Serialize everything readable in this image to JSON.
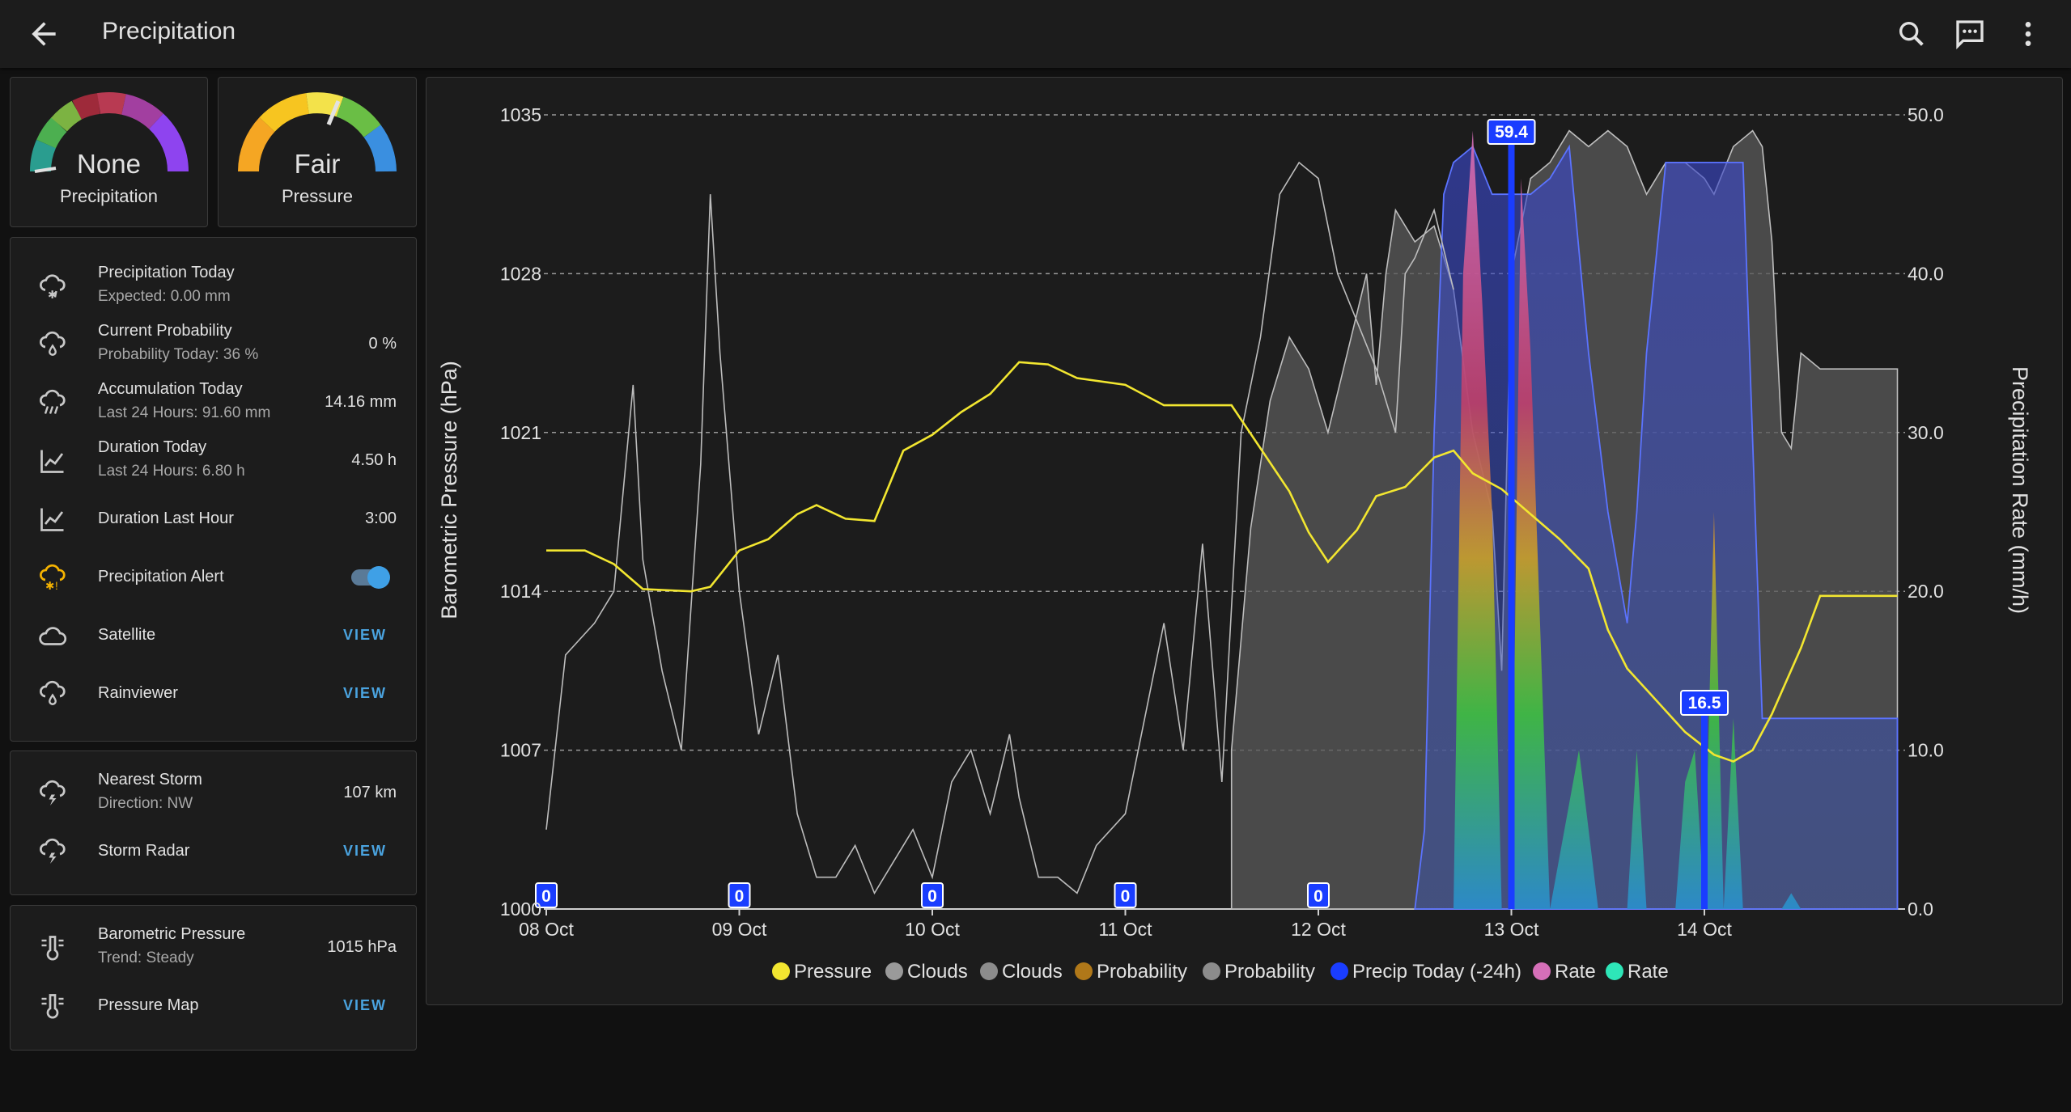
{
  "header": {
    "title": "Precipitation"
  },
  "gauges": [
    {
      "value": "None",
      "label": "Precipitation"
    },
    {
      "value": "Fair",
      "label": "Pressure"
    }
  ],
  "entities": {
    "precip_today": {
      "name": "Precipitation Today",
      "secondary": "Expected: 0.00 mm"
    },
    "current_probability": {
      "name": "Current Probability",
      "secondary": "Probability Today: 36 %",
      "value": "0 %"
    },
    "accumulation_today": {
      "name": "Accumulation Today",
      "secondary": "Last 24 Hours: 91.60 mm",
      "value": "14.16 mm"
    },
    "duration_today": {
      "name": "Duration Today",
      "secondary": "Last 24 Hours: 6.80 h",
      "value": "4.50 h"
    },
    "duration_last_hour": {
      "name": "Duration Last Hour",
      "value": "3:00"
    },
    "precip_alert": {
      "name": "Precipitation Alert",
      "state": "on"
    },
    "satellite": {
      "name": "Satellite",
      "action": "VIEW"
    },
    "rainviewer": {
      "name": "Rainviewer",
      "action": "VIEW"
    },
    "nearest_storm": {
      "name": "Nearest Storm",
      "secondary": "Direction: NW",
      "value": "107 km"
    },
    "storm_radar": {
      "name": "Storm Radar",
      "action": "VIEW"
    },
    "barometric_pressure": {
      "name": "Barometric Pressure",
      "secondary": "Trend: Steady",
      "value": "1015 hPa"
    },
    "pressure_map": {
      "name": "Pressure Map",
      "action": "VIEW"
    }
  },
  "icons": {
    "back": "arrow-left-icon",
    "search": "search-icon",
    "chat": "chat-icon",
    "menu": "dots-vertical-icon",
    "precip_today": "weather-snowy-rainy-icon",
    "probability": "weather-rain-icon",
    "accumulation": "weather-pouring-icon",
    "duration": "chart-line-icon",
    "alert": "weather-alert-icon",
    "cloud": "cloud-outline-icon",
    "storm": "weather-lightning-rainy-icon",
    "pressure": "thermometer-lines-icon"
  },
  "colors": {
    "accent": "#4aa3df",
    "pressure_line": "#f2e630",
    "precip_today": "#1a3dff",
    "rate": "#d56fb8",
    "rate_alt": "#2ee6b8"
  },
  "chart_data": {
    "type": "line",
    "left_axis": {
      "label": "Barometric Pressure (hPa)",
      "ticks": [
        1000,
        1007,
        1014,
        1021,
        1028,
        1035
      ],
      "range": [
        1000,
        1035
      ]
    },
    "right_axis": {
      "label": "Precipitation Rate (mm/h)",
      "ticks": [
        "0.0",
        "10.0",
        "20.0",
        "30.0",
        "40.0",
        "50.0"
      ],
      "range": [
        0,
        50
      ]
    },
    "x_ticks": [
      "08 Oct",
      "09 Oct",
      "10 Oct",
      "11 Oct",
      "12 Oct",
      "13 Oct",
      "14 Oct"
    ],
    "x_range_days": [
      0,
      7
    ],
    "grid": true,
    "legend": [
      {
        "name": "Pressure",
        "color": "#f2e630"
      },
      {
        "name": "Clouds",
        "color": "#9a9a9a"
      },
      {
        "name": "Clouds",
        "color": "#8c8c8c"
      },
      {
        "name": "Probability",
        "color": "#b07819"
      },
      {
        "name": "Probability",
        "color": "#8c8c8c"
      },
      {
        "name": "Precip Today (-24h)",
        "color": "#1a3dff"
      },
      {
        "name": "Rate",
        "color": "#d56fb8"
      },
      {
        "name": "Rate",
        "color": "#2ee6b8"
      }
    ],
    "legend_position": "bottom",
    "series": [
      {
        "name": "Pressure",
        "axis": "left",
        "points": [
          [
            0,
            1015.8
          ],
          [
            0.2,
            1015.8
          ],
          [
            0.35,
            1015.2
          ],
          [
            0.5,
            1014.1
          ],
          [
            0.75,
            1014.0
          ],
          [
            0.85,
            1014.2
          ],
          [
            1.0,
            1015.8
          ],
          [
            1.15,
            1016.3
          ],
          [
            1.3,
            1017.4
          ],
          [
            1.4,
            1017.8
          ],
          [
            1.55,
            1017.2
          ],
          [
            1.7,
            1017.1
          ],
          [
            1.85,
            1020.2
          ],
          [
            2.0,
            1020.9
          ],
          [
            2.15,
            1021.9
          ],
          [
            2.3,
            1022.7
          ],
          [
            2.45,
            1024.1
          ],
          [
            2.6,
            1024.0
          ],
          [
            2.75,
            1023.4
          ],
          [
            3.0,
            1023.1
          ],
          [
            3.2,
            1022.2
          ],
          [
            3.55,
            1022.2
          ],
          [
            3.7,
            1020.3
          ],
          [
            3.85,
            1018.4
          ],
          [
            3.95,
            1016.6
          ],
          [
            4.05,
            1015.3
          ],
          [
            4.2,
            1016.7
          ],
          [
            4.3,
            1018.2
          ],
          [
            4.45,
            1018.6
          ],
          [
            4.6,
            1019.9
          ],
          [
            4.7,
            1020.2
          ],
          [
            4.8,
            1019.2
          ],
          [
            4.95,
            1018.5
          ],
          [
            5.1,
            1017.4
          ],
          [
            5.25,
            1016.3
          ],
          [
            5.4,
            1015.0
          ],
          [
            5.5,
            1012.3
          ],
          [
            5.6,
            1010.6
          ],
          [
            5.75,
            1009.2
          ],
          [
            5.9,
            1007.8
          ],
          [
            6.05,
            1006.8
          ],
          [
            6.15,
            1006.5
          ],
          [
            6.25,
            1007.0
          ],
          [
            6.35,
            1008.6
          ],
          [
            6.5,
            1011.5
          ],
          [
            6.6,
            1013.8
          ],
          [
            7.0,
            1013.8
          ]
        ]
      },
      {
        "name": "Clouds",
        "axis": "right",
        "fill": false,
        "points": [
          [
            0,
            5
          ],
          [
            0.1,
            16
          ],
          [
            0.25,
            18
          ],
          [
            0.35,
            20
          ],
          [
            0.45,
            33
          ],
          [
            0.5,
            22
          ],
          [
            0.6,
            15
          ],
          [
            0.7,
            10
          ],
          [
            0.8,
            28
          ],
          [
            0.85,
            45
          ],
          [
            0.9,
            35
          ],
          [
            1.0,
            20
          ],
          [
            1.1,
            11
          ],
          [
            1.2,
            16
          ],
          [
            1.3,
            6
          ],
          [
            1.4,
            2
          ],
          [
            1.5,
            2
          ],
          [
            1.6,
            4
          ],
          [
            1.7,
            1
          ],
          [
            1.8,
            3
          ],
          [
            1.9,
            5
          ],
          [
            2.0,
            2
          ],
          [
            2.1,
            8
          ],
          [
            2.2,
            10
          ],
          [
            2.3,
            6
          ],
          [
            2.4,
            11
          ],
          [
            2.45,
            7
          ],
          [
            2.55,
            2
          ],
          [
            2.65,
            2
          ],
          [
            2.75,
            1
          ],
          [
            2.85,
            4
          ],
          [
            3.0,
            6
          ],
          [
            3.1,
            12
          ],
          [
            3.2,
            18
          ],
          [
            3.3,
            10
          ],
          [
            3.4,
            23
          ],
          [
            3.5,
            8
          ],
          [
            3.6,
            30
          ],
          [
            3.7,
            36
          ],
          [
            3.8,
            45
          ],
          [
            3.9,
            47
          ],
          [
            4.0,
            46
          ],
          [
            4.1,
            40
          ],
          [
            4.2,
            37
          ],
          [
            4.3,
            34
          ],
          [
            4.4,
            30
          ],
          [
            4.45,
            40
          ],
          [
            4.5,
            41
          ],
          [
            4.6,
            44
          ],
          [
            4.7,
            39
          ]
        ]
      },
      {
        "name": "Clouds",
        "axis": "right",
        "fill": true,
        "points": [
          [
            3.55,
            10
          ],
          [
            3.65,
            24
          ],
          [
            3.75,
            32
          ],
          [
            3.85,
            36
          ],
          [
            3.95,
            34
          ],
          [
            4.05,
            30
          ],
          [
            4.15,
            35
          ],
          [
            4.25,
            40
          ],
          [
            4.3,
            33
          ],
          [
            4.35,
            40
          ],
          [
            4.4,
            44
          ],
          [
            4.5,
            42
          ],
          [
            4.6,
            43
          ],
          [
            4.7,
            39
          ],
          [
            4.8,
            30
          ],
          [
            4.9,
            25
          ],
          [
            4.95,
            15
          ],
          [
            5.0,
            40
          ],
          [
            5.1,
            46
          ],
          [
            5.2,
            47
          ],
          [
            5.3,
            49
          ],
          [
            5.4,
            48
          ],
          [
            5.5,
            49
          ],
          [
            5.6,
            48
          ],
          [
            5.7,
            45
          ],
          [
            5.8,
            47
          ],
          [
            5.9,
            47
          ],
          [
            6.0,
            46
          ],
          [
            6.05,
            45
          ],
          [
            6.15,
            48
          ],
          [
            6.25,
            49
          ],
          [
            6.3,
            48
          ],
          [
            6.35,
            42
          ],
          [
            6.4,
            30
          ],
          [
            6.45,
            29
          ],
          [
            6.5,
            35
          ],
          [
            6.6,
            34
          ],
          [
            7.0,
            34
          ]
        ]
      },
      {
        "name": "Probability",
        "axis": "right",
        "fill": true,
        "points": [
          [
            4.5,
            0
          ],
          [
            4.55,
            5
          ],
          [
            4.6,
            30
          ],
          [
            4.65,
            45
          ],
          [
            4.7,
            47
          ],
          [
            4.8,
            48
          ],
          [
            4.9,
            45
          ],
          [
            5.0,
            45
          ],
          [
            5.1,
            45
          ],
          [
            5.2,
            46
          ],
          [
            5.3,
            48
          ],
          [
            5.4,
            35
          ],
          [
            5.5,
            25
          ],
          [
            5.6,
            18
          ],
          [
            5.65,
            25
          ],
          [
            5.7,
            35
          ],
          [
            5.8,
            47
          ],
          [
            6.2,
            47
          ],
          [
            6.3,
            12
          ],
          [
            7.0,
            12
          ]
        ]
      },
      {
        "name": "Precip Today (-24h)",
        "axis": "right",
        "markers": [
          {
            "x": 5.0,
            "label": "59.4"
          },
          {
            "x": 6.0,
            "label": "16.5"
          }
        ]
      },
      {
        "name": "Rate",
        "axis": "right",
        "points": [
          [
            4.7,
            0
          ],
          [
            4.75,
            40
          ],
          [
            4.8,
            49
          ],
          [
            4.85,
            38
          ],
          [
            4.9,
            25
          ],
          [
            4.95,
            0
          ],
          [
            5.0,
            0
          ],
          [
            5.05,
            46
          ],
          [
            5.1,
            35
          ],
          [
            5.2,
            0
          ],
          [
            5.35,
            10
          ],
          [
            5.45,
            0
          ],
          [
            5.6,
            0
          ],
          [
            5.65,
            10
          ],
          [
            5.7,
            0
          ],
          [
            5.85,
            0
          ],
          [
            5.9,
            8
          ],
          [
            5.95,
            10
          ],
          [
            6.0,
            0
          ],
          [
            6.05,
            25
          ],
          [
            6.1,
            0
          ],
          [
            6.15,
            12
          ],
          [
            6.2,
            0
          ],
          [
            6.4,
            0
          ],
          [
            6.45,
            1
          ],
          [
            6.5,
            0
          ]
        ]
      }
    ],
    "markers_zero": [
      {
        "x": 0,
        "label": "0"
      },
      {
        "x": 1,
        "label": "0"
      },
      {
        "x": 2,
        "label": "0"
      },
      {
        "x": 3,
        "label": "0"
      },
      {
        "x": 4,
        "label": "0"
      }
    ]
  }
}
